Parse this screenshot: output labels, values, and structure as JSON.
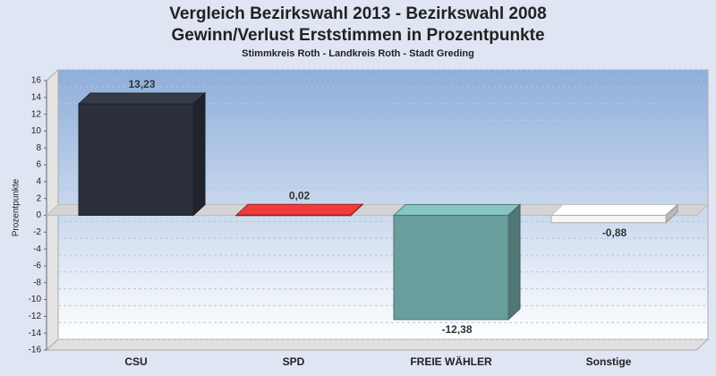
{
  "chart_data": {
    "type": "bar3d",
    "title": [
      "Vergleich Bezirkswahl 2013 - Bezirkswahl 2008",
      "Gewinn/Verlust Erststimmen in Prozentpunkte"
    ],
    "subtitle": "Stimmkreis Roth - Landkreis Roth - Stadt Greding",
    "y_label": "Prozentpunkte",
    "categories": [
      "CSU",
      "SPD",
      "FREIE WÄHLER",
      "Sonstige"
    ],
    "values": [
      13.23,
      0.02,
      -12.38,
      -0.88
    ],
    "value_labels": [
      "13,23",
      "0,02",
      "-12,38",
      "-0,88"
    ],
    "colors": [
      "#2b2f3a",
      "#c0302f",
      "#6a9e9c",
      "#f6f6f6"
    ],
    "ylim": [
      -16,
      16
    ],
    "yticks": [
      -16,
      -14,
      -12,
      -10,
      -8,
      -6,
      -4,
      -2,
      0,
      2,
      4,
      6,
      8,
      10,
      12,
      14,
      16
    ],
    "grid": true
  }
}
